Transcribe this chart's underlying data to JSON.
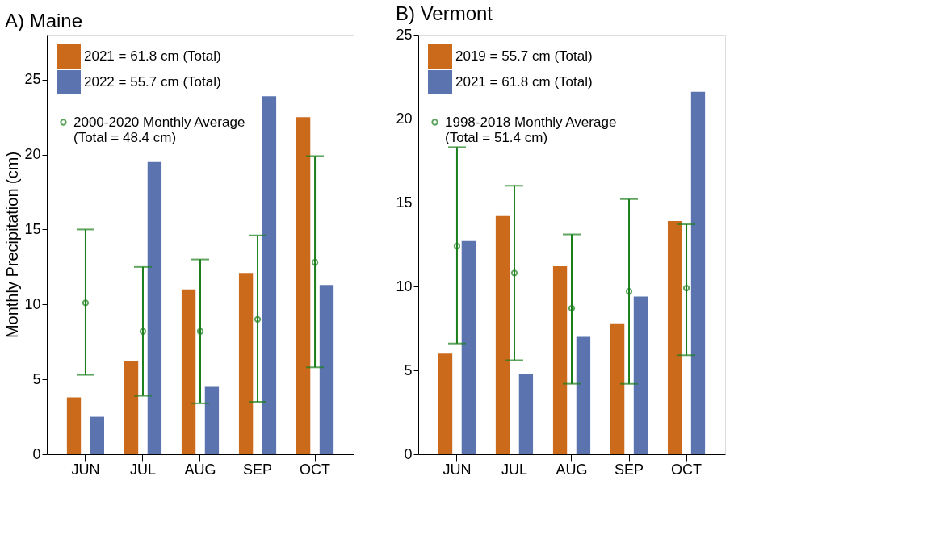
{
  "chart_data": [
    {
      "type": "bar",
      "title": "A) Maine",
      "ylabel": "Monthly Precipitation (cm)",
      "categories": [
        "JUN",
        "JUL",
        "AUG",
        "SEP",
        "OCT"
      ],
      "ylim": [
        0,
        28
      ],
      "yticks": [
        0,
        5,
        10,
        15,
        20,
        25
      ],
      "grid": false,
      "legend": "top left",
      "series": [
        {
          "name": "2021 = 61.8 cm (Total)",
          "color": "#cc6a1c",
          "values": [
            3.8,
            6.2,
            11.0,
            12.1,
            22.5
          ]
        },
        {
          "name": "2022 = 55.7 cm (Total)",
          "color": "#5b74b0",
          "values": [
            2.5,
            19.5,
            4.5,
            23.9,
            11.3
          ]
        },
        {
          "name": "2000-2020 Monthly Average\n(Total = 48.4 cm)",
          "type": "scatter",
          "marker": "circle",
          "color": "#1a7f1a",
          "x": [
            "JUN",
            "JUL",
            "AUG",
            "SEP",
            "OCT"
          ],
          "values": [
            10.1,
            8.2,
            8.2,
            9.0,
            12.8
          ],
          "errors": [
            [
              5.3,
              15.0
            ],
            [
              3.9,
              12.5
            ],
            [
              3.4,
              13.0
            ],
            [
              3.5,
              14.6
            ],
            [
              5.8,
              19.9
            ]
          ]
        }
      ]
    },
    {
      "type": "bar",
      "title": "B) Vermont",
      "categories": [
        "JUN",
        "JUL",
        "AUG",
        "SEP",
        "OCT"
      ],
      "ylim": [
        0,
        25
      ],
      "yticks": [
        0,
        5,
        10,
        15,
        20,
        25
      ],
      "grid": false,
      "legend": "top left",
      "series": [
        {
          "name": "2019 = 55.7 cm (Total)",
          "color": "#cc6a1c",
          "values": [
            6.0,
            14.2,
            11.2,
            7.8,
            13.9
          ]
        },
        {
          "name": "2021 = 61.8 cm (Total)",
          "color": "#5b74b0",
          "values": [
            12.7,
            4.8,
            7.0,
            9.4,
            21.6
          ]
        },
        {
          "name": "1998-2018 Monthly Average\n(Total = 51.4 cm)",
          "type": "scatter",
          "marker": "circle",
          "color": "#1a7f1a",
          "x": [
            "JUN",
            "JUL",
            "AUG",
            "SEP",
            "OCT"
          ],
          "values": [
            12.4,
            10.8,
            8.7,
            9.7,
            9.9
          ],
          "errors": [
            [
              6.6,
              18.3
            ],
            [
              5.6,
              16.0
            ],
            [
              4.2,
              13.1
            ],
            [
              4.2,
              15.2
            ],
            [
              5.9,
              13.7
            ]
          ]
        }
      ]
    }
  ]
}
